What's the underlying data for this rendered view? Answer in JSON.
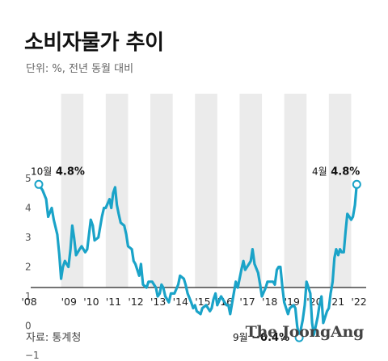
{
  "header": {
    "title": "소비자물가 추이",
    "subtitle": "단위: %, 전년 동월 대비"
  },
  "footer": {
    "source": "자료: 통계청",
    "logo": "The JoongAng"
  },
  "colors": {
    "line": "#1aa3c8",
    "shade": "#ebebeb",
    "axis": "#222222",
    "marker_fill": "#ffffff"
  },
  "chart_data": {
    "type": "line",
    "title": "소비자물가 추이",
    "subtitle": "단위: %, 전년 동월 대비",
    "xlabel": "",
    "ylabel": "",
    "ylim": [
      -1,
      5
    ],
    "yticks": [
      -1,
      0,
      1,
      2,
      3,
      4,
      5
    ],
    "xlim": [
      2008.0,
      2022.6
    ],
    "xtick_labels": [
      "'08",
      "'09",
      "'10",
      "'11",
      "'12",
      "'13",
      "'14",
      "'15",
      "'16",
      "'17",
      "'18",
      "'19",
      "'20",
      "'21",
      "'22"
    ],
    "shaded_years": [
      "'09",
      "'11",
      "'13",
      "'15",
      "'17",
      "'19",
      "'21"
    ],
    "grid": false,
    "series": [
      {
        "values": [
          [
            2008.0,
            4.8
          ],
          [
            2008.17,
            4.6
          ],
          [
            2008.33,
            4.3
          ],
          [
            2008.42,
            3.7
          ],
          [
            2008.58,
            4.0
          ],
          [
            2008.67,
            3.6
          ],
          [
            2008.83,
            3.1
          ],
          [
            2008.92,
            2.4
          ],
          [
            2009.0,
            1.6
          ],
          [
            2009.08,
            2.0
          ],
          [
            2009.17,
            2.2
          ],
          [
            2009.33,
            2.0
          ],
          [
            2009.42,
            2.6
          ],
          [
            2009.5,
            3.4
          ],
          [
            2009.58,
            3.0
          ],
          [
            2009.67,
            2.4
          ],
          [
            2009.83,
            2.6
          ],
          [
            2009.92,
            2.7
          ],
          [
            2010.08,
            2.5
          ],
          [
            2010.17,
            2.6
          ],
          [
            2010.25,
            3.1
          ],
          [
            2010.33,
            3.6
          ],
          [
            2010.42,
            3.4
          ],
          [
            2010.5,
            2.9
          ],
          [
            2010.67,
            3.0
          ],
          [
            2010.83,
            3.7
          ],
          [
            2010.92,
            4.0
          ],
          [
            2011.0,
            4.0
          ],
          [
            2011.17,
            4.3
          ],
          [
            2011.25,
            4.0
          ],
          [
            2011.33,
            4.5
          ],
          [
            2011.42,
            4.7
          ],
          [
            2011.5,
            4.1
          ],
          [
            2011.58,
            3.8
          ],
          [
            2011.67,
            3.5
          ],
          [
            2011.83,
            3.4
          ],
          [
            2011.92,
            3.1
          ],
          [
            2012.0,
            2.7
          ],
          [
            2012.17,
            2.6
          ],
          [
            2012.25,
            2.2
          ],
          [
            2012.33,
            2.1
          ],
          [
            2012.5,
            1.7
          ],
          [
            2012.58,
            2.1
          ],
          [
            2012.67,
            1.4
          ],
          [
            2012.83,
            1.3
          ],
          [
            2012.92,
            1.5
          ],
          [
            2013.08,
            1.5
          ],
          [
            2013.25,
            1.3
          ],
          [
            2013.33,
            1.0
          ],
          [
            2013.42,
            1.1
          ],
          [
            2013.5,
            1.4
          ],
          [
            2013.58,
            1.3
          ],
          [
            2013.67,
            1.0
          ],
          [
            2013.83,
            0.8
          ],
          [
            2013.92,
            1.1
          ],
          [
            2014.08,
            1.1
          ],
          [
            2014.25,
            1.4
          ],
          [
            2014.33,
            1.7
          ],
          [
            2014.5,
            1.6
          ],
          [
            2014.58,
            1.4
          ],
          [
            2014.67,
            1.1
          ],
          [
            2014.83,
            0.8
          ],
          [
            2014.92,
            0.6
          ],
          [
            2015.0,
            0.7
          ],
          [
            2015.08,
            0.5
          ],
          [
            2015.25,
            0.4
          ],
          [
            2015.33,
            0.6
          ],
          [
            2015.5,
            0.7
          ],
          [
            2015.67,
            0.5
          ],
          [
            2015.75,
            0.6
          ],
          [
            2015.83,
            0.9
          ],
          [
            2015.92,
            1.1
          ],
          [
            2016.0,
            0.7
          ],
          [
            2016.17,
            1.0
          ],
          [
            2016.33,
            0.8
          ],
          [
            2016.42,
            0.7
          ],
          [
            2016.5,
            0.7
          ],
          [
            2016.58,
            0.4
          ],
          [
            2016.67,
            0.8
          ],
          [
            2016.83,
            1.5
          ],
          [
            2016.92,
            1.3
          ],
          [
            2017.08,
            1.9
          ],
          [
            2017.17,
            2.2
          ],
          [
            2017.25,
            1.9
          ],
          [
            2017.42,
            2.1
          ],
          [
            2017.5,
            2.2
          ],
          [
            2017.58,
            2.6
          ],
          [
            2017.67,
            2.1
          ],
          [
            2017.83,
            1.8
          ],
          [
            2017.92,
            1.4
          ],
          [
            2018.0,
            1.0
          ],
          [
            2018.17,
            1.3
          ],
          [
            2018.25,
            1.5
          ],
          [
            2018.42,
            1.5
          ],
          [
            2018.5,
            1.5
          ],
          [
            2018.58,
            1.4
          ],
          [
            2018.67,
            1.9
          ],
          [
            2018.75,
            2.0
          ],
          [
            2018.83,
            2.0
          ],
          [
            2018.92,
            1.3
          ],
          [
            2019.0,
            0.8
          ],
          [
            2019.17,
            0.4
          ],
          [
            2019.25,
            0.6
          ],
          [
            2019.42,
            0.7
          ],
          [
            2019.5,
            0.6
          ],
          [
            2019.58,
            0.0
          ],
          [
            2019.67,
            -0.4
          ],
          [
            2019.83,
            0.2
          ],
          [
            2019.92,
            0.7
          ],
          [
            2020.0,
            1.5
          ],
          [
            2020.17,
            1.1
          ],
          [
            2020.25,
            0.1
          ],
          [
            2020.33,
            -0.3
          ],
          [
            2020.5,
            0.3
          ],
          [
            2020.58,
            0.7
          ],
          [
            2020.67,
            1.0
          ],
          [
            2020.75,
            0.1
          ],
          [
            2020.92,
            0.5
          ],
          [
            2021.0,
            0.6
          ],
          [
            2021.08,
            1.1
          ],
          [
            2021.17,
            1.5
          ],
          [
            2021.25,
            2.3
          ],
          [
            2021.33,
            2.6
          ],
          [
            2021.42,
            2.4
          ],
          [
            2021.5,
            2.6
          ],
          [
            2021.58,
            2.5
          ],
          [
            2021.67,
            2.5
          ],
          [
            2021.75,
            3.2
          ],
          [
            2021.83,
            3.8
          ],
          [
            2021.92,
            3.7
          ],
          [
            2022.0,
            3.6
          ],
          [
            2022.08,
            3.7
          ],
          [
            2022.17,
            4.1
          ],
          [
            2022.25,
            4.8
          ]
        ]
      }
    ],
    "annotations": [
      {
        "month": "10월",
        "value": "4.8%",
        "x": 2008.0,
        "y": 4.8
      },
      {
        "month": "9월",
        "value": "−0.4%",
        "x": 2019.67,
        "y": -0.4
      },
      {
        "month": "4월",
        "value": "4.8%",
        "x": 2022.25,
        "y": 4.8
      }
    ]
  }
}
